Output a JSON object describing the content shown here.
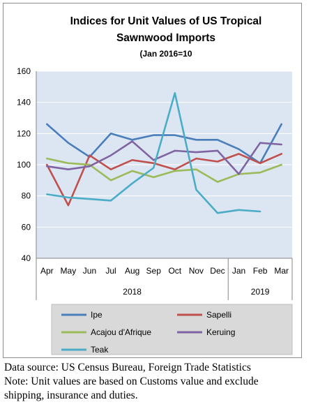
{
  "chart_data": {
    "type": "line",
    "title": "Indices for Unit Values of US Tropical Sawnwood Imports",
    "title_lines": [
      "Indices for Unit Values of US Tropical",
      "Sawnwood Imports"
    ],
    "subtitle": "(Jan 2016=10",
    "categories": [
      "Apr",
      "May",
      "Jun",
      "Jul",
      "Aug",
      "Sep",
      "Oct",
      "Nov",
      "Dec",
      "Jan",
      "Feb",
      "Mar"
    ],
    "year_groups": [
      {
        "label": "2018",
        "from": 0,
        "to": 8
      },
      {
        "label": "2019",
        "from": 9,
        "to": 11
      }
    ],
    "ylim": [
      40,
      160
    ],
    "yticks": [
      40,
      60,
      80,
      100,
      120,
      140,
      160
    ],
    "grid": true,
    "legend_position": "bottom",
    "series": [
      {
        "name": "Ipe",
        "color": "#4a7ebb",
        "values": [
          126,
          114,
          105,
          120,
          116,
          119,
          119,
          116,
          116,
          110,
          101,
          126
        ]
      },
      {
        "name": "Sapelli",
        "color": "#c0504d",
        "values": [
          100,
          74,
          106,
          97,
          103,
          101,
          97,
          104,
          102,
          107,
          101,
          107
        ]
      },
      {
        "name": "Acajou d'Afrique",
        "color": "#9bbb59",
        "values": [
          104,
          101,
          100,
          90,
          96,
          92,
          96,
          97,
          89,
          94,
          95,
          100
        ]
      },
      {
        "name": "Keruing",
        "color": "#8064a2",
        "values": [
          99,
          97,
          99,
          106,
          115,
          103,
          109,
          108,
          109,
          94,
          114,
          113
        ]
      },
      {
        "name": "Teak",
        "color": "#4bacc6",
        "values": [
          81,
          79,
          78,
          77,
          88,
          98,
          146,
          84,
          69,
          71,
          70,
          null
        ]
      }
    ]
  },
  "footnotes": {
    "source": "Data source: US Census Bureau, Foreign Trade Statistics",
    "note_line1": "Note: Unit values are based on Customs value and exclude",
    "note_line2": "shipping, insurance and duties."
  }
}
